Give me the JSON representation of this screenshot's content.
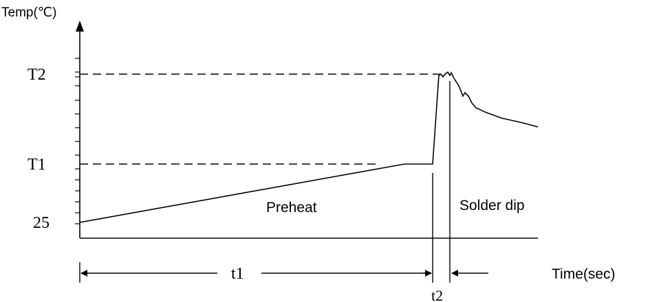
{
  "chart_data": {
    "type": "line",
    "ylabel": "Temp(℃)",
    "xlabel": "Time(sec)",
    "y_marks": [
      "T2",
      "T1",
      "25"
    ],
    "phases": [
      "Preheat",
      "Solder dip"
    ],
    "intervals": [
      "t1",
      "t2"
    ],
    "grid": false
  },
  "colors": {
    "ink": "#000000",
    "background": "#ffffff"
  }
}
